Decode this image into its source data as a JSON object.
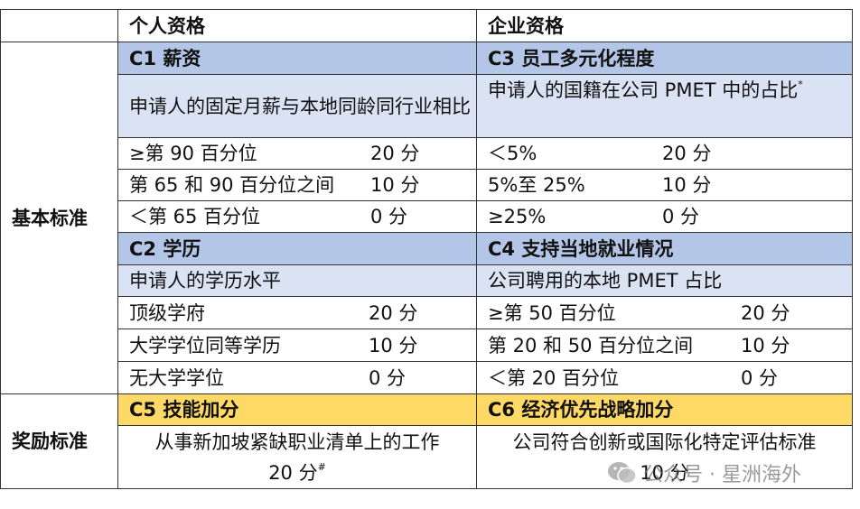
{
  "header": {
    "personal": "个人资格",
    "enterprise": "企业资格"
  },
  "basic": {
    "label": "基本标准",
    "c1": {
      "title": "C1 薪资",
      "description": "申请人的固定月薪与本地同龄同行业相比",
      "items": [
        [
          "≥第 90 百分位",
          "20 分"
        ],
        [
          "第 65 和 90 百分位之间",
          "10 分"
        ],
        [
          "＜第 65 百分位",
          "0 分"
        ]
      ]
    },
    "c3": {
      "title": "C3 员工多元化程度",
      "description": "申请人的国籍在公司 PMET 中的占比",
      "note_mark": "*",
      "items": [
        [
          "＜5%",
          "20 分"
        ],
        [
          "5%至 25%",
          "10 分"
        ],
        [
          "≥25%",
          "0 分"
        ]
      ]
    },
    "c2": {
      "title": "C2 学历",
      "description": "申请人的学历水平",
      "items": [
        [
          "顶级学府",
          "20 分"
        ],
        [
          "大学学位同等学历",
          "10 分"
        ],
        [
          "无大学学位",
          "0 分"
        ]
      ]
    },
    "c4": {
      "title": "C4 支持当地就业情况",
      "description": "公司聘用的本地 PMET 占比",
      "items": [
        [
          "≥第 50 百分位",
          "20 分"
        ],
        [
          "第 20 和 50 百分位之间",
          "10 分"
        ],
        [
          "＜第 20 百分位",
          "0 分"
        ]
      ]
    }
  },
  "bonus": {
    "label": "奖励标准",
    "c5": {
      "title": "C5 技能加分",
      "description": "从事新加坡紧缺职业清单上的工作",
      "score": "20 分",
      "note_mark": "#"
    },
    "c6": {
      "title": "C6 经济优先战略加分",
      "description": "公司符合创新或国际化特定评估标准",
      "score": "10 分"
    }
  },
  "watermark": "公众号 · 星洲海外"
}
